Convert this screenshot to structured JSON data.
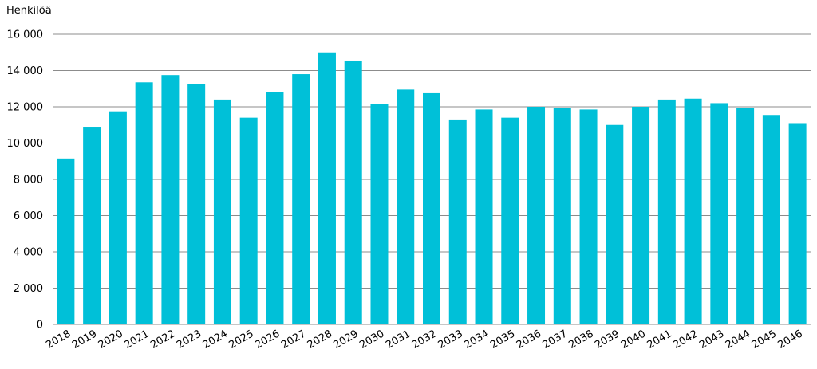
{
  "chart_data": {
    "type": "bar",
    "title": "",
    "ylabel": "Henkilöä",
    "xlabel": "",
    "ylim": [
      0,
      16000
    ],
    "yticks": [
      0,
      2000,
      4000,
      6000,
      8000,
      10000,
      12000,
      14000,
      16000
    ],
    "ytick_labels": [
      "0",
      "2 000",
      "4 000",
      "6 000",
      "8 000",
      "10 000",
      "12 000",
      "14 000",
      "16 000"
    ],
    "grid": true,
    "legend": "none",
    "bar_color": "#00C0D8",
    "categories": [
      "2018",
      "2019",
      "2020",
      "2021",
      "2022",
      "2023",
      "2024",
      "2025",
      "2026",
      "2027",
      "2028",
      "2029",
      "2030",
      "2031",
      "2032",
      "2033",
      "2034",
      "2035",
      "2036",
      "2037",
      "2038",
      "2039",
      "2040",
      "2041",
      "2042",
      "2043",
      "2044",
      "2045",
      "2046"
    ],
    "values": [
      9150,
      10900,
      11750,
      13350,
      13750,
      13250,
      12400,
      11400,
      12800,
      13800,
      15000,
      14550,
      12150,
      12950,
      12750,
      11300,
      11850,
      11400,
      12000,
      11950,
      11850,
      11000,
      12000,
      12400,
      12450,
      12200,
      11950,
      11550,
      11100
    ]
  }
}
